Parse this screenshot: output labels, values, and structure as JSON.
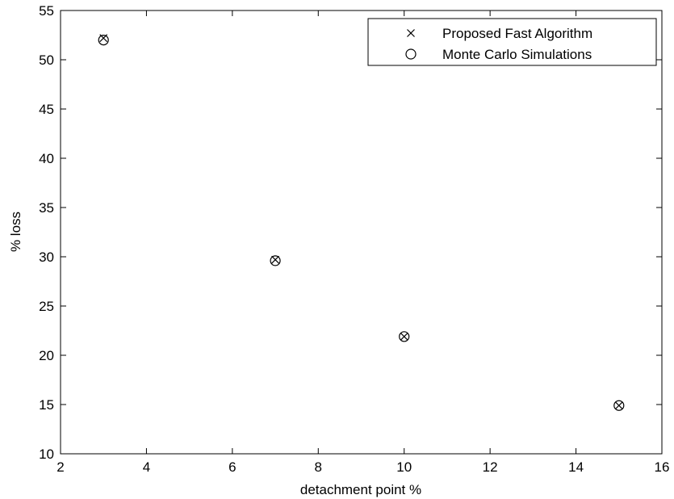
{
  "chart_data": {
    "type": "scatter",
    "xlabel": "detachment point %",
    "ylabel": "% loss",
    "xlim": [
      2,
      16
    ],
    "ylim": [
      10,
      55
    ],
    "xticks": [
      2,
      4,
      6,
      8,
      10,
      12,
      14,
      16
    ],
    "yticks": [
      10,
      15,
      20,
      25,
      30,
      35,
      40,
      45,
      50,
      55
    ],
    "grid": false,
    "legend_position": "top-right",
    "series": [
      {
        "name": "Proposed Fast Algorithm",
        "marker": "x",
        "x": [
          3,
          7,
          10,
          15
        ],
        "y": [
          52.2,
          29.7,
          21.9,
          14.9
        ]
      },
      {
        "name": "Monte Carlo Simulations",
        "marker": "circle",
        "x": [
          3,
          7,
          10,
          15
        ],
        "y": [
          52.0,
          29.6,
          21.9,
          14.9
        ]
      }
    ]
  }
}
